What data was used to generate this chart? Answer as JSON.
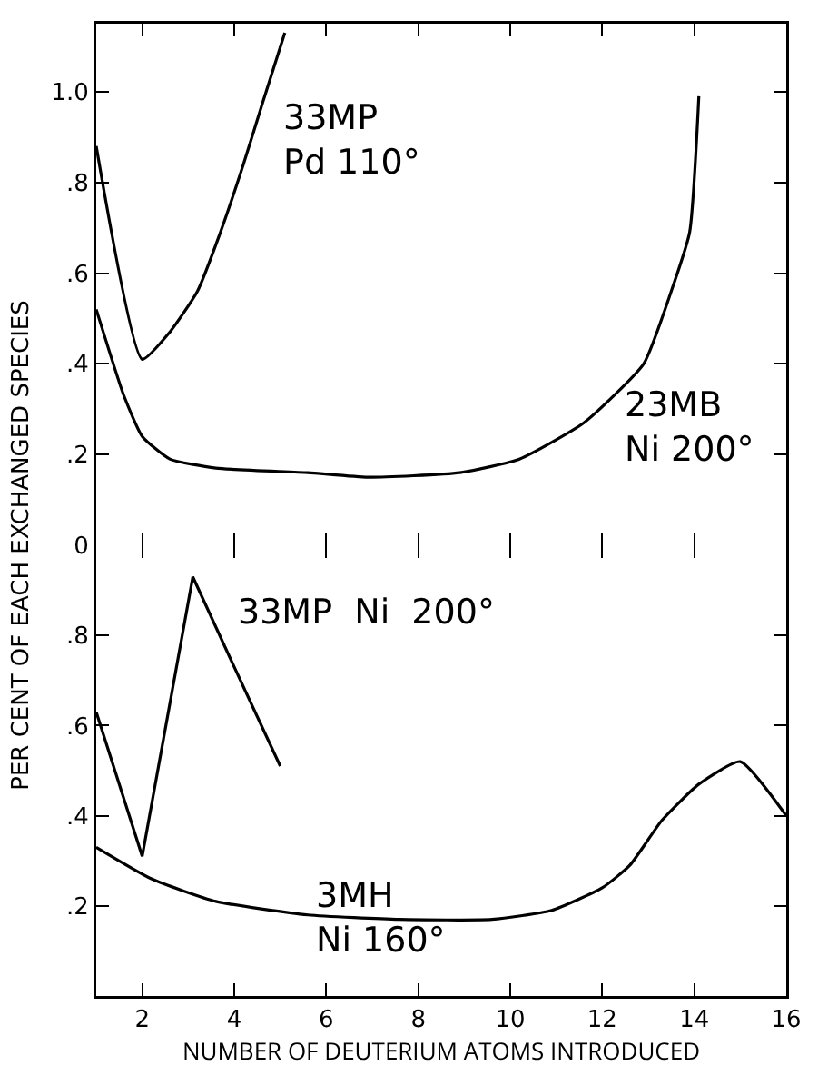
{
  "chart_data": [
    {
      "type": "line",
      "ylabel": "PER CENT OF EACH EXCHANGED SPECIES",
      "tick_labels": "y",
      "xlim": [
        1,
        16
      ],
      "ylim": [
        0,
        1.15
      ],
      "xticks": [
        {
          "value": 2,
          "label": null
        },
        {
          "value": 4,
          "label": null
        },
        {
          "value": 6,
          "label": null
        },
        {
          "value": 8,
          "label": null
        },
        {
          "value": 10,
          "label": null
        },
        {
          "value": 12,
          "label": null
        },
        {
          "value": 14,
          "label": null
        }
      ],
      "yticks": [
        0,
        {
          "value": 0.2,
          "label": ".2"
        },
        {
          "value": 0.4,
          "label": ".4"
        },
        {
          "value": 0.6,
          "label": ".6"
        },
        {
          "value": 0.8,
          "label": ".8"
        },
        {
          "value": 1.0,
          "label": "1.0"
        }
      ],
      "series": [
        {
          "name": "33MP\nPd 110°",
          "color": "#000000",
          "x": [
            1,
            2,
            2.6,
            3.2,
            3.7,
            4.2,
            4.6,
            5.1
          ],
          "values": [
            0.88,
            0.41,
            0.47,
            0.56,
            0.69,
            0.84,
            0.97,
            1.13
          ]
        },
        {
          "name": "23MB\nNi 200°",
          "color": "#000000",
          "x": [
            1,
            1.6,
            2,
            2.6,
            3.6,
            5.6,
            6.9,
            8.9,
            10.2,
            11.6,
            12.9,
            13.5,
            13.9,
            14.1
          ],
          "values": [
            0.52,
            0.33,
            0.24,
            0.19,
            0.17,
            0.16,
            0.15,
            0.16,
            0.19,
            0.27,
            0.4,
            0.56,
            0.69,
            0.99
          ]
        }
      ]
    },
    {
      "type": "line",
      "xlabel": "NUMBER OF DEUTERIUM ATOMS INTRODUCED",
      "xlim": [
        1,
        16
      ],
      "ylim": [
        0,
        1.0
      ],
      "xticks": [
        2,
        4,
        6,
        8,
        10,
        12,
        14,
        16
      ],
      "yticks": [
        {
          "value": 0.2,
          "label": ".2"
        },
        {
          "value": 0.4,
          "label": ".4"
        },
        {
          "value": 0.6,
          "label": ".6"
        },
        {
          "value": 0.8,
          "label": ".8"
        }
      ],
      "series": [
        {
          "name": "33MP  Ni  200°",
          "color": "#000000",
          "x": [
            1,
            2,
            3.1,
            4,
            5
          ],
          "values": [
            0.63,
            0.31,
            0.93,
            0.73,
            0.51
          ]
        },
        {
          "name": "3MH\nNi 160°",
          "color": "#000000",
          "x": [
            1,
            2.2,
            3.6,
            5.6,
            7.6,
            9.6,
            10.9,
            12,
            12.6,
            13.3,
            14.1,
            15,
            16
          ],
          "values": [
            0.33,
            0.26,
            0.21,
            0.18,
            0.17,
            0.17,
            0.19,
            0.24,
            0.29,
            0.39,
            0.47,
            0.52,
            0.4
          ]
        }
      ]
    }
  ]
}
